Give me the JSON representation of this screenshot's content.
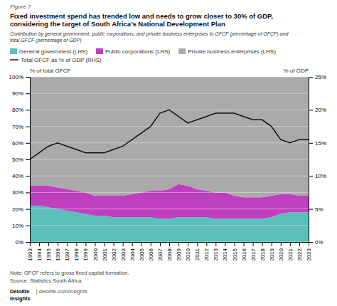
{
  "chart_data": {
    "type": "area",
    "title": [
      "Fixed investment spend has trended low and needs to grow closer to 30% of GDP,",
      "considering the target of South Africa’s National Development Plan"
    ],
    "subtitle": [
      "Contribution by general government, public corporations, and private business enterprises to GFCF (percentage of GFCF) and",
      "total GFCF (percentage of GDP)"
    ],
    "annotations": [
      "Figure 7",
      "Note: GFCF refers to gross fixed capital formation.",
      "Source: Statistics South Africa.",
      "Deloitte",
      "Insights",
      "| deloitte.com/insights"
    ],
    "ylabel": "% of total GFCF",
    "y2label": "% of GDP",
    "x": [
      1993,
      1994,
      1995,
      1996,
      1997,
      1998,
      1999,
      2000,
      2001,
      2002,
      2003,
      2004,
      2005,
      2006,
      2007,
      2008,
      2009,
      2010,
      2011,
      2012,
      2013,
      2014,
      2015,
      2016,
      2017,
      2018,
      2019,
      2020,
      2021,
      2022,
      2023
    ],
    "xlim": [
      1993,
      2023
    ],
    "xticks": [
      1993,
      1994,
      1995,
      1996,
      1997,
      1998,
      1999,
      2000,
      2001,
      2002,
      2003,
      2004,
      2005,
      2006,
      2007,
      2008,
      2009,
      2010,
      2011,
      2012,
      2013,
      2014,
      2015,
      2016,
      2017,
      2018,
      2019,
      2020,
      2021,
      2022,
      2023
    ],
    "ylim": [
      0,
      100
    ],
    "yticks": [
      {
        "value": 0,
        "label": "0%"
      },
      {
        "value": 10,
        "label": "10%"
      },
      {
        "value": 20,
        "label": "20%"
      },
      {
        "value": 30,
        "label": "30%"
      },
      {
        "value": 40,
        "label": "40%"
      },
      {
        "value": 50,
        "label": "50%"
      },
      {
        "value": 60,
        "label": "60%"
      },
      {
        "value": 70,
        "label": "70%"
      },
      {
        "value": 80,
        "label": "80%"
      },
      {
        "value": 90,
        "label": "90%"
      },
      {
        "value": 100,
        "label": "100%"
      }
    ],
    "y2lim": [
      0,
      25
    ],
    "y2ticks": [
      {
        "value": 0,
        "label": "0%"
      },
      {
        "value": 5,
        "label": "5%"
      },
      {
        "value": 10,
        "label": "10%"
      },
      {
        "value": 15,
        "label": "15%"
      },
      {
        "value": 20,
        "label": "20%"
      },
      {
        "value": 25,
        "label": "25%"
      }
    ],
    "stacked": true,
    "grid": true,
    "legend": "top",
    "series": [
      {
        "name": "General government (LHS)",
        "type": "area",
        "color": "#5bbfbb",
        "values": [
          22,
          22,
          21,
          20,
          19,
          18,
          17,
          16,
          16,
          15,
          15,
          15,
          15,
          15,
          14,
          14,
          15,
          15,
          15,
          15,
          14,
          14,
          14,
          14,
          14,
          14,
          15,
          17,
          18,
          18,
          18
        ]
      },
      {
        "name": "Public corporations (LHS)",
        "type": "area",
        "color": "#bf40bf",
        "values": [
          12,
          12,
          13,
          13,
          13,
          13,
          13,
          12,
          12,
          13,
          13,
          14,
          15,
          16,
          17,
          18,
          20,
          19,
          17,
          16,
          16,
          16,
          14,
          13,
          13,
          13,
          13,
          12,
          11,
          10,
          10
        ]
      },
      {
        "name": "Private business enterprises (LHS)",
        "type": "area",
        "color": "#aaaaaa",
        "values": [
          66,
          66,
          66,
          67,
          68,
          69,
          70,
          72,
          72,
          72,
          72,
          71,
          70,
          69,
          69,
          68,
          65,
          66,
          68,
          69,
          70,
          70,
          72,
          73,
          73,
          73,
          72,
          71,
          71,
          72,
          72
        ]
      },
      {
        "name": "Total GFCF as % of GDP (RHS)",
        "type": "line",
        "axis": "y2",
        "color": "#111111",
        "values": [
          12.5,
          13.5,
          14.5,
          15.0,
          14.5,
          14.0,
          13.5,
          13.5,
          13.5,
          14.0,
          14.5,
          15.5,
          16.5,
          17.5,
          19.5,
          20.0,
          19.0,
          18.0,
          18.5,
          19.0,
          19.5,
          19.5,
          19.5,
          19.0,
          18.5,
          18.5,
          17.5,
          15.5,
          15.0,
          15.5,
          15.5
        ]
      }
    ]
  }
}
